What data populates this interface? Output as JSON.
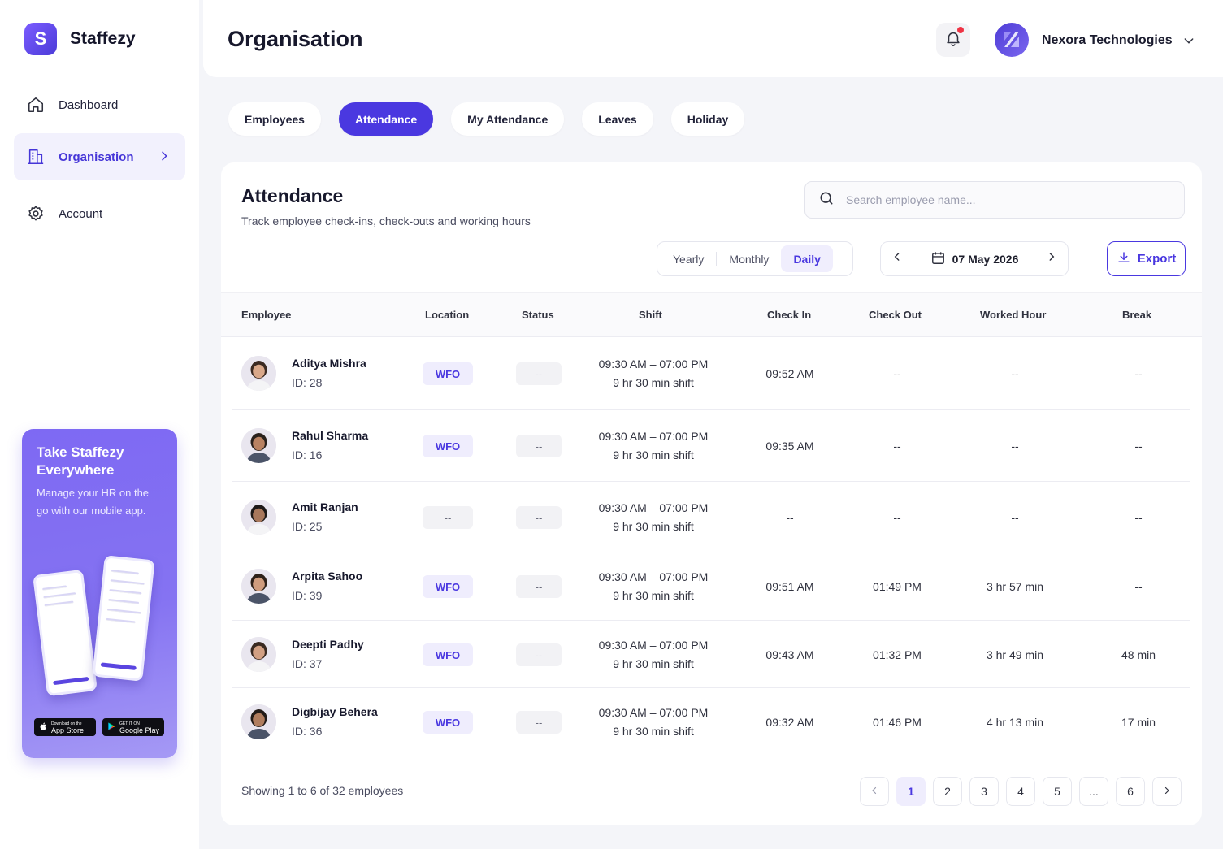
{
  "app": {
    "name": "Staffezy",
    "logo_letter": "S"
  },
  "sidebar": {
    "items": [
      {
        "label": "Dashboard",
        "icon": "home-icon"
      },
      {
        "label": "Organisation",
        "icon": "building-icon",
        "active": true
      },
      {
        "label": "Account",
        "icon": "gear-icon"
      }
    ],
    "promo": {
      "title": "Take Staffezy Everywhere",
      "text": "Manage your HR on the go with our mobile app.",
      "app_store": "App Store",
      "app_store_small": "Download on the",
      "google_play": "Google Play",
      "google_play_small": "GET IT ON"
    }
  },
  "header": {
    "title": "Organisation",
    "org_name": "Nexora Technologies"
  },
  "tabs": [
    {
      "label": "Employees"
    },
    {
      "label": "Attendance",
      "active": true
    },
    {
      "label": "My Attendance"
    },
    {
      "label": "Leaves"
    },
    {
      "label": "Holiday"
    }
  ],
  "attendance": {
    "title": "Attendance",
    "subtitle": "Track employee check-ins, check-outs and working hours",
    "search_placeholder": "Search employee name...",
    "views": [
      "Yearly",
      "Monthly",
      "Daily"
    ],
    "active_view": "Daily",
    "date": "07 May 2026",
    "export_label": "Export",
    "columns": [
      "Employee",
      "Location",
      "Status",
      "Shift",
      "Check In",
      "Check Out",
      "Worked Hour",
      "Break"
    ],
    "rows": [
      {
        "name": "Aditya Mishra",
        "id": "ID: 28",
        "location": "WFO",
        "status": "--",
        "shift": "09:30 AM – 07:00 PM",
        "shift_len": "9 hr 30 min shift",
        "check_in": "09:52 AM",
        "check_out": "--",
        "worked": "--",
        "break": "--"
      },
      {
        "name": "Rahul Sharma",
        "id": "ID: 16",
        "location": "WFO",
        "status": "--",
        "shift": "09:30 AM – 07:00 PM",
        "shift_len": "9 hr 30 min shift",
        "check_in": "09:35 AM",
        "check_out": "--",
        "worked": "--",
        "break": "--"
      },
      {
        "name": "Amit Ranjan",
        "id": "ID: 25",
        "location": "--",
        "status": "--",
        "shift": "09:30 AM – 07:00 PM",
        "shift_len": "9 hr 30 min shift",
        "check_in": "--",
        "check_out": "--",
        "worked": "--",
        "break": "--"
      },
      {
        "name": "Arpita Sahoo",
        "id": "ID: 39",
        "location": "WFO",
        "status": "--",
        "shift": "09:30 AM – 07:00 PM",
        "shift_len": "9 hr 30 min shift",
        "check_in": "09:51 AM",
        "check_out": "01:49 PM",
        "worked": "3 hr 57 min",
        "break": "--"
      },
      {
        "name": "Deepti Padhy",
        "id": "ID: 37",
        "location": "WFO",
        "status": "--",
        "shift": "09:30 AM – 07:00 PM",
        "shift_len": "9 hr 30 min shift",
        "check_in": "09:43 AM",
        "check_out": "01:32 PM",
        "worked": "3 hr 49 min",
        "break": "48 min"
      },
      {
        "name": "Digbijay Behera",
        "id": "ID: 36",
        "location": "WFO",
        "status": "--",
        "shift": "09:30 AM – 07:00 PM",
        "shift_len": "9 hr 30 min shift",
        "check_in": "09:32 AM",
        "check_out": "01:46 PM",
        "worked": "4 hr 13 min",
        "break": "17 min"
      }
    ],
    "footer": "Showing 1 to 6 of 32 employees",
    "pages": [
      "1",
      "2",
      "3",
      "4",
      "5",
      "...",
      "6"
    ],
    "current_page": "1"
  },
  "colors": {
    "accent": "#4a38e0",
    "accent_light": "#efedfd",
    "notification": "#ef3344"
  }
}
